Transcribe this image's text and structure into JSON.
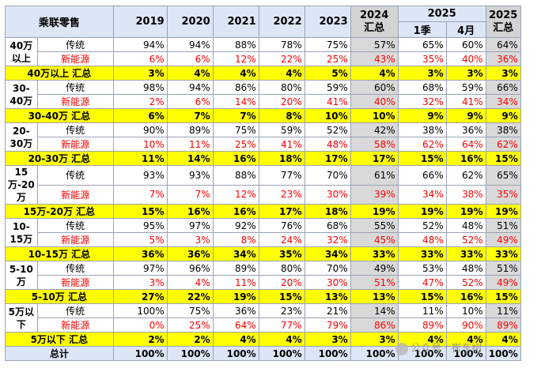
{
  "header": {
    "title": "乘联零售",
    "years": [
      "2019",
      "2020",
      "2021",
      "2022",
      "2023"
    ],
    "col_2024": "2024 汇总",
    "group_2025": "2025",
    "sub_q1": "1季",
    "sub_apr": "4月",
    "col_2025sum": "2025 汇总"
  },
  "rows": [
    {
      "category": "40万以上",
      "trad": {
        "label": "传统",
        "vals": [
          "94%",
          "94%",
          "88%",
          "78%",
          "75%",
          "57%",
          "65%",
          "60%",
          "64%"
        ]
      },
      "nev": {
        "label": "新能源",
        "vals": [
          "6%",
          "6%",
          "12%",
          "22%",
          "25%",
          "43%",
          "35%",
          "40%",
          "36%"
        ]
      },
      "sum": {
        "label": "40万以上 汇总",
        "vals": [
          "3%",
          "4%",
          "4%",
          "4%",
          "5%",
          "4%",
          "3%",
          "3%",
          "3%"
        ]
      }
    },
    {
      "category": "30-40万",
      "trad": {
        "label": "传统",
        "vals": [
          "98%",
          "94%",
          "86%",
          "80%",
          "59%",
          "60%",
          "68%",
          "59%",
          "66%"
        ]
      },
      "nev": {
        "label": "新能源",
        "vals": [
          "2%",
          "6%",
          "14%",
          "20%",
          "41%",
          "40%",
          "32%",
          "41%",
          "34%"
        ]
      },
      "sum": {
        "label": "30-40万 汇总",
        "vals": [
          "6%",
          "7%",
          "7%",
          "8%",
          "10%",
          "10%",
          "9%",
          "9%",
          "9%"
        ]
      }
    },
    {
      "category": "20-30万",
      "trad": {
        "label": "传统",
        "vals": [
          "90%",
          "89%",
          "75%",
          "59%",
          "52%",
          "42%",
          "38%",
          "36%",
          "38%"
        ]
      },
      "nev": {
        "label": "新能源",
        "vals": [
          "10%",
          "11%",
          "25%",
          "41%",
          "48%",
          "58%",
          "62%",
          "64%",
          "62%"
        ]
      },
      "sum": {
        "label": "20-30万 汇总",
        "vals": [
          "11%",
          "14%",
          "16%",
          "18%",
          "17%",
          "17%",
          "15%",
          "16%",
          "15%"
        ]
      }
    },
    {
      "category": "15万-20万",
      "trad": {
        "label": "传统",
        "vals": [
          "93%",
          "93%",
          "88%",
          "77%",
          "70%",
          "61%",
          "66%",
          "62%",
          "65%"
        ]
      },
      "nev": {
        "label": "新能源",
        "vals": [
          "7%",
          "7%",
          "12%",
          "23%",
          "30%",
          "39%",
          "34%",
          "38%",
          "35%"
        ]
      },
      "sum": {
        "label": "15万-20万 汇总",
        "vals": [
          "15%",
          "16%",
          "16%",
          "17%",
          "18%",
          "19%",
          "19%",
          "19%",
          "19%"
        ]
      }
    },
    {
      "category": "10-15万",
      "trad": {
        "label": "传统",
        "vals": [
          "95%",
          "97%",
          "92%",
          "76%",
          "68%",
          "55%",
          "52%",
          "48%",
          "51%"
        ]
      },
      "nev": {
        "label": "新能源",
        "vals": [
          "5%",
          "3%",
          "8%",
          "24%",
          "32%",
          "45%",
          "48%",
          "52%",
          "49%"
        ]
      },
      "sum": {
        "label": "10-15万 汇总",
        "vals": [
          "36%",
          "36%",
          "34%",
          "35%",
          "34%",
          "33%",
          "33%",
          "33%",
          "33%"
        ]
      }
    },
    {
      "category": "5-10万",
      "trad": {
        "label": "传统",
        "vals": [
          "97%",
          "96%",
          "89%",
          "80%",
          "70%",
          "49%",
          "53%",
          "48%",
          "51%"
        ]
      },
      "nev": {
        "label": "新能源",
        "vals": [
          "3%",
          "4%",
          "11%",
          "20%",
          "30%",
          "51%",
          "47%",
          "52%",
          "49%"
        ]
      },
      "sum": {
        "label": "5-10万 汇总",
        "vals": [
          "27%",
          "22%",
          "19%",
          "15%",
          "13%",
          "13%",
          "15%",
          "16%",
          "15%"
        ]
      }
    },
    {
      "category": "5万以下",
      "trad": {
        "label": "传统",
        "vals": [
          "100%",
          "75%",
          "36%",
          "23%",
          "21%",
          "14%",
          "11%",
          "10%",
          "11%"
        ]
      },
      "nev": {
        "label": "新能源",
        "vals": [
          "0%",
          "25%",
          "64%",
          "77%",
          "79%",
          "86%",
          "89%",
          "90%",
          "89%"
        ]
      },
      "sum": {
        "label": "5万以下 汇总",
        "vals": [
          "2%",
          "2%",
          "4%",
          "4%",
          "3%",
          "3%",
          "4%",
          "4%",
          "4%"
        ]
      }
    }
  ],
  "total": {
    "label": "总计",
    "vals": [
      "100%",
      "100%",
      "100%",
      "100%",
      "100%",
      "100%",
      "100%",
      "100%",
      "100%"
    ]
  },
  "watermark": "公众号 · 崔东树"
}
